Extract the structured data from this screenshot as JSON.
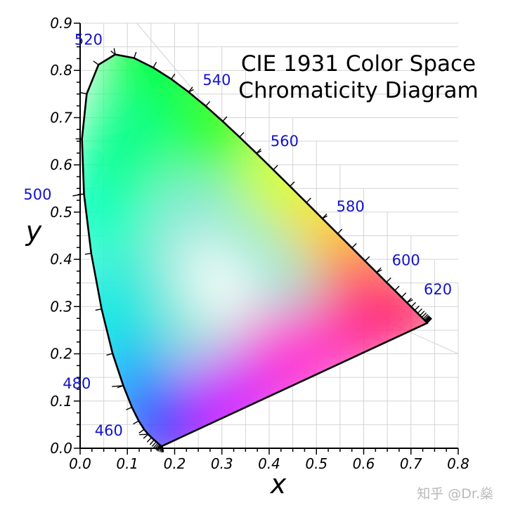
{
  "chart_data": {
    "type": "chromaticity-diagram",
    "title": [
      "CIE 1931 Color Space",
      "Chromaticity Diagram"
    ],
    "xlabel": "x",
    "ylabel": "y",
    "xlim": [
      0.0,
      0.8
    ],
    "ylim": [
      0.0,
      0.9
    ],
    "x_ticks": [
      "0.0",
      "0.1",
      "0.2",
      "0.3",
      "0.4",
      "0.5",
      "0.6",
      "0.7",
      "0.8"
    ],
    "y_ticks": [
      "0.0",
      "0.1",
      "0.2",
      "0.3",
      "0.4",
      "0.5",
      "0.6",
      "0.7",
      "0.8",
      "0.9"
    ],
    "grid": true,
    "spectral_locus": [
      [
        0.1741,
        0.005
      ],
      [
        0.1738,
        0.0049
      ],
      [
        0.1736,
        0.0049
      ],
      [
        0.1733,
        0.0048
      ],
      [
        0.173,
        0.0048
      ],
      [
        0.1726,
        0.0048
      ],
      [
        0.1721,
        0.0048
      ],
      [
        0.1714,
        0.0051
      ],
      [
        0.1703,
        0.0058
      ],
      [
        0.1689,
        0.0069
      ],
      [
        0.1669,
        0.0086
      ],
      [
        0.1644,
        0.0109
      ],
      [
        0.1611,
        0.0138
      ],
      [
        0.1566,
        0.0177
      ],
      [
        0.151,
        0.0227
      ],
      [
        0.144,
        0.0297
      ],
      [
        0.1355,
        0.0399
      ],
      [
        0.1241,
        0.0578
      ],
      [
        0.1096,
        0.0868
      ],
      [
        0.0913,
        0.1327
      ],
      [
        0.0687,
        0.2007
      ],
      [
        0.0454,
        0.295
      ],
      [
        0.0235,
        0.4127
      ],
      [
        0.0082,
        0.5384
      ],
      [
        0.0039,
        0.6548
      ],
      [
        0.0139,
        0.7502
      ],
      [
        0.0389,
        0.812
      ],
      [
        0.0743,
        0.8338
      ],
      [
        0.1142,
        0.8262
      ],
      [
        0.1547,
        0.8059
      ],
      [
        0.1929,
        0.7816
      ],
      [
        0.2296,
        0.7543
      ],
      [
        0.2658,
        0.7243
      ],
      [
        0.3016,
        0.6923
      ],
      [
        0.3373,
        0.6589
      ],
      [
        0.3731,
        0.6245
      ],
      [
        0.4087,
        0.5896
      ],
      [
        0.4441,
        0.5547
      ],
      [
        0.4788,
        0.5202
      ],
      [
        0.5125,
        0.4866
      ],
      [
        0.5448,
        0.4544
      ],
      [
        0.5752,
        0.4242
      ],
      [
        0.6029,
        0.3965
      ],
      [
        0.627,
        0.3725
      ],
      [
        0.6482,
        0.3514
      ],
      [
        0.6658,
        0.334
      ],
      [
        0.6801,
        0.3197
      ],
      [
        0.6915,
        0.3083
      ],
      [
        0.7006,
        0.2993
      ],
      [
        0.7079,
        0.292
      ],
      [
        0.714,
        0.2859
      ],
      [
        0.719,
        0.2809
      ],
      [
        0.723,
        0.277
      ],
      [
        0.726,
        0.274
      ],
      [
        0.7283,
        0.2717
      ],
      [
        0.73,
        0.27
      ],
      [
        0.7311,
        0.2689
      ],
      [
        0.732,
        0.268
      ],
      [
        0.7327,
        0.2673
      ],
      [
        0.7334,
        0.2666
      ],
      [
        0.734,
        0.266
      ],
      [
        0.7344,
        0.2656
      ],
      [
        0.7346,
        0.2654
      ],
      [
        0.7347,
        0.2653
      ]
    ],
    "wavelength_labels": [
      {
        "label": "460",
        "x": 0.144,
        "y": 0.0297
      },
      {
        "label": "480",
        "x": 0.0913,
        "y": 0.1327
      },
      {
        "label": "500",
        "x": 0.0082,
        "y": 0.5384
      },
      {
        "label": "520",
        "x": 0.0743,
        "y": 0.8338
      },
      {
        "label": "540",
        "x": 0.2296,
        "y": 0.7543
      },
      {
        "label": "560",
        "x": 0.3731,
        "y": 0.6245
      },
      {
        "label": "580",
        "x": 0.5125,
        "y": 0.4866
      },
      {
        "label": "600",
        "x": 0.627,
        "y": 0.3725
      },
      {
        "label": "620",
        "x": 0.6915,
        "y": 0.3083
      }
    ]
  },
  "colors": {
    "wavelength_label": "#1313c8",
    "grid": "#d4d4d4",
    "outline": "#000000",
    "white_point": "#ffffff"
  },
  "watermark": "知乎 @Dr.燊"
}
